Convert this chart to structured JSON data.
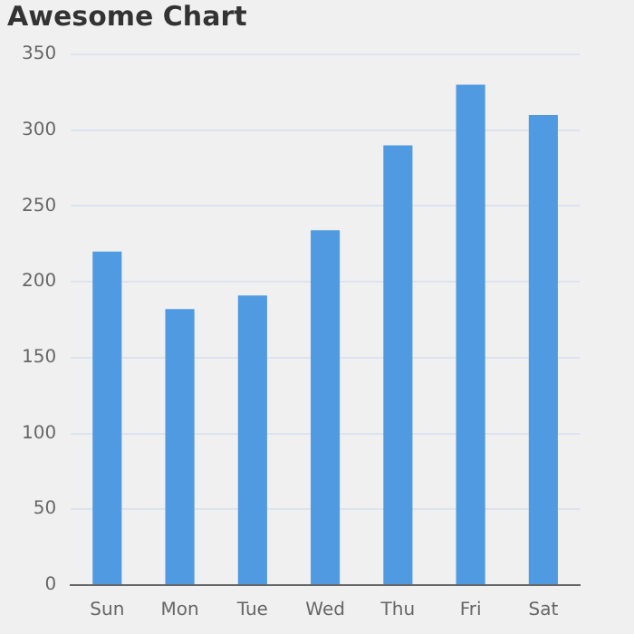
{
  "chart_data": {
    "type": "bar",
    "title": "Awesome Chart",
    "categories": [
      "Sun",
      "Mon",
      "Tue",
      "Wed",
      "Thu",
      "Fri",
      "Sat"
    ],
    "values": [
      220,
      182,
      191,
      234,
      290,
      330,
      310
    ],
    "color": "#4f9ae0",
    "ylim": [
      0,
      350
    ],
    "yticks": [
      0,
      50,
      100,
      150,
      200,
      250,
      300,
      350
    ],
    "grid": "y",
    "legend": false
  }
}
